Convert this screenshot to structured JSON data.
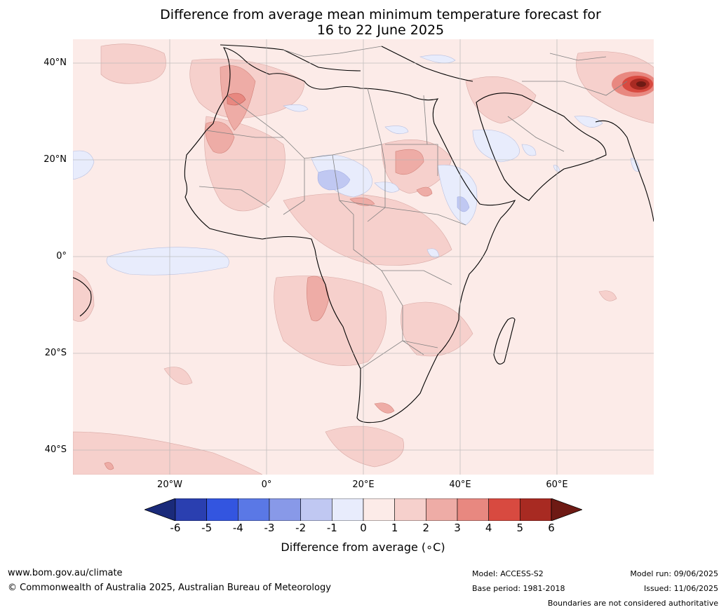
{
  "title_line1": "Difference from average mean minimum temperature forecast for",
  "title_line2": "16 to 22 June 2025",
  "lat_labels": [
    "40°N",
    "20°N",
    "0°",
    "20°S",
    "40°S"
  ],
  "lon_labels": [
    "20°W",
    "0°",
    "20°E",
    "40°E",
    "60°E"
  ],
  "colorbar": {
    "label": "Difference from average (∘C)",
    "ticks": [
      "-6",
      "-5",
      "-4",
      "-3",
      "-2",
      "-1",
      "0",
      "1",
      "2",
      "3",
      "4",
      "5",
      "6"
    ],
    "colors": [
      "#1a2a7a",
      "#2a3fb0",
      "#3355e0",
      "#5a78e6",
      "#8899e8",
      "#c0c8f2",
      "#e8ecfc",
      "#fcebe8",
      "#f6d0cc",
      "#eeaca6",
      "#e88880",
      "#d84a40",
      "#a82a22",
      "#6e1a14"
    ]
  },
  "footer": {
    "website": "www.bom.gov.au/climate",
    "copyright": "© Commonwealth of Australia 2025, Australian Bureau of Meteorology",
    "model": "Model: ACCESS-S2",
    "base_period": "Base period: 1981-2018",
    "model_run": "Model run: 09/06/2025",
    "issued": "Issued: 11/06/2025",
    "disclaimer": "Boundaries are not considered authoritative"
  }
}
